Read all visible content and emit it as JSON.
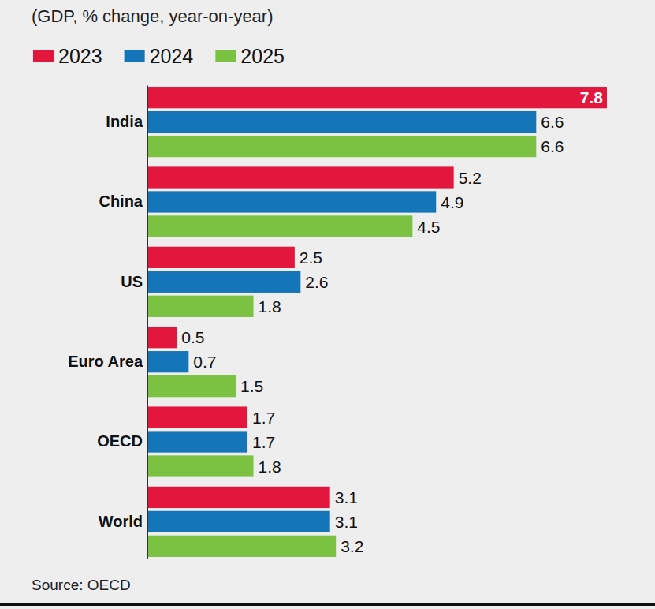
{
  "chart_data": {
    "type": "bar",
    "orientation": "horizontal",
    "subtitle": "(GDP, % change, year-on-year)",
    "source": "Source: OECD",
    "categories": [
      "India",
      "China",
      "US",
      "Euro Area",
      "OECD",
      "World"
    ],
    "series": [
      {
        "name": "2023",
        "color": "#e3173e",
        "values": [
          7.8,
          5.2,
          2.5,
          0.5,
          1.7,
          3.1
        ]
      },
      {
        "name": "2024",
        "color": "#1476b9",
        "values": [
          6.6,
          4.9,
          2.6,
          0.7,
          1.7,
          3.1
        ]
      },
      {
        "name": "2025",
        "color": "#7cc242",
        "values": [
          6.6,
          4.5,
          1.8,
          1.5,
          1.8,
          3.2
        ]
      }
    ],
    "xlim": [
      0,
      7.8
    ],
    "xticks": [],
    "data_labels": true,
    "tick_labels": "y",
    "legend": "top-left",
    "grid": false
  }
}
